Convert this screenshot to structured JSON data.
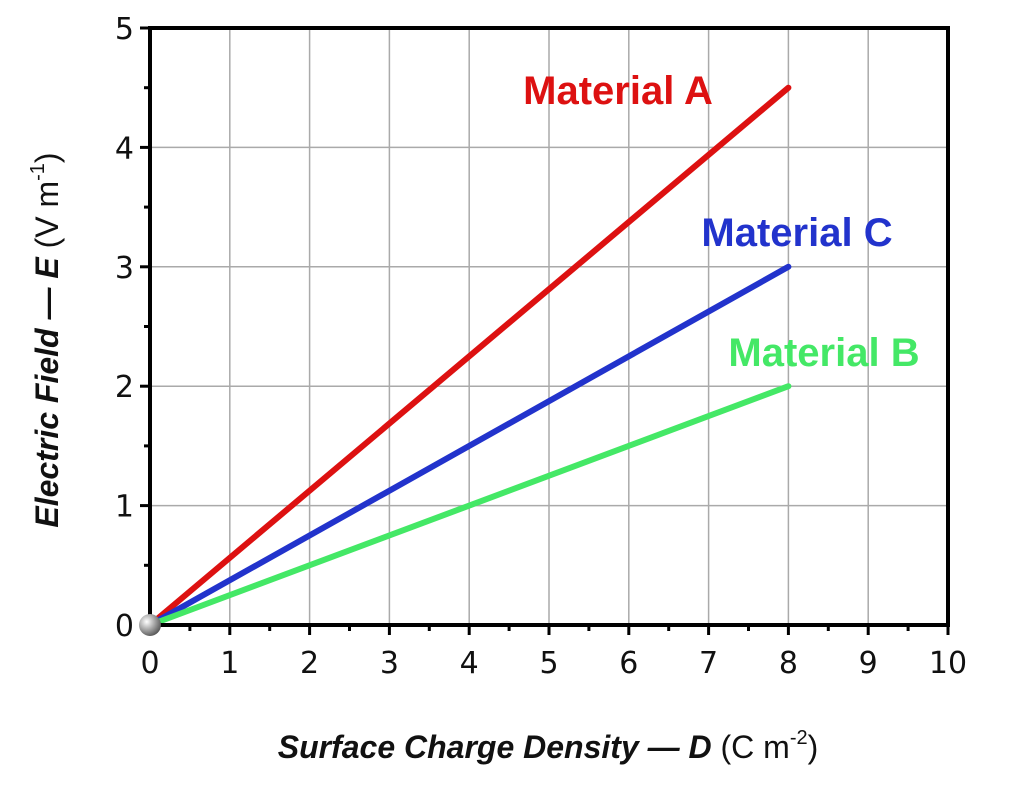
{
  "chart_data": {
    "type": "line",
    "title": "",
    "xlabel": {
      "main": "Surface Charge Density — ",
      "symbol": "D",
      "unit_pre": " (C m",
      "unit_exp": "-2",
      "unit_post": ")"
    },
    "ylabel": {
      "main": "Electric Field — ",
      "symbol": "E",
      "unit_pre": " (V m",
      "unit_exp": "-1",
      "unit_post": ")"
    },
    "xlim": [
      0,
      10
    ],
    "ylim": [
      0,
      5
    ],
    "xticks": [
      "0",
      "1",
      "2",
      "3",
      "4",
      "5",
      "6",
      "7",
      "8",
      "9",
      "10"
    ],
    "yticks": [
      "0",
      "1",
      "2",
      "3",
      "4",
      "5"
    ],
    "grid": true,
    "series": [
      {
        "name": "Material A",
        "color": "#dd1111",
        "x": [
          0,
          8
        ],
        "y": [
          0,
          4.5
        ]
      },
      {
        "name": "Material C",
        "color": "#2233cc",
        "x": [
          0,
          8
        ],
        "y": [
          0,
          3
        ]
      },
      {
        "name": "Material B",
        "color": "#44e866",
        "x": [
          0,
          8
        ],
        "y": [
          0,
          2
        ]
      }
    ],
    "origin_marker": "gray-sphere"
  }
}
